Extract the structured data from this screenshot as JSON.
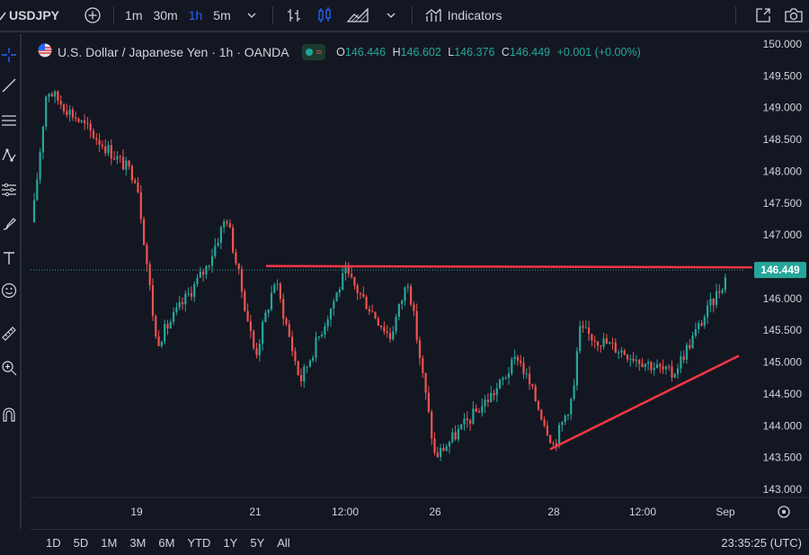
{
  "toolbar": {
    "symbol": "USDJPY",
    "intervals": [
      "1m",
      "30m",
      "1h",
      "5m"
    ],
    "active_interval": "1h",
    "indicators_label": "Indicators"
  },
  "legend": {
    "title": "U.S. Dollar / Japanese Yen · 1h · OANDA",
    "o_label": "O",
    "o_value": "146.446",
    "h_label": "H",
    "h_value": "146.602",
    "l_label": "L",
    "l_value": "146.376",
    "c_label": "C",
    "c_value": "146.449",
    "change": "+0.001 (+0.00%)"
  },
  "price_axis": {
    "ticks": [
      "150.000",
      "149.500",
      "149.000",
      "148.500",
      "148.000",
      "147.500",
      "147.000",
      "146.500",
      "146.000",
      "145.500",
      "145.000",
      "144.500",
      "144.000",
      "143.500",
      "143.000"
    ],
    "current_price": "146.449"
  },
  "time_axis": {
    "labels": [
      "19",
      "21",
      "12:00",
      "26",
      "28",
      "12:00",
      "Sep"
    ]
  },
  "ranges": [
    "1D",
    "5D",
    "1M",
    "3M",
    "6M",
    "YTD",
    "1Y",
    "5Y",
    "All"
  ],
  "clock": "23:35:25 (UTC)",
  "colors": {
    "background": "#131722",
    "up": "#26a69a",
    "down": "#ef5350",
    "trendline": "#f23645",
    "accent": "#2962ff"
  },
  "chart_data": {
    "type": "candlestick",
    "ylim": [
      143.0,
      150.0
    ],
    "trendlines": [
      {
        "from": {
          "x": "21",
          "y": 146.51
        },
        "to": {
          "x": "Sep",
          "y": 146.49
        }
      },
      {
        "from": {
          "x": "28",
          "y": 143.63
        },
        "to": {
          "x": "Sep",
          "y": 145.1
        }
      }
    ],
    "close_path": [
      {
        "x": "start",
        "y": 147.2
      },
      {
        "x": "18",
        "y": 149.3
      },
      {
        "x": "19",
        "y": 147.9
      },
      {
        "x": "19",
        "y": 145.3
      },
      {
        "x": "20",
        "y": 146.5
      },
      {
        "x": "20",
        "y": 147.3
      },
      {
        "x": "21",
        "y": 145.1
      },
      {
        "x": "21",
        "y": 146.3
      },
      {
        "x": "22",
        "y": 144.7
      },
      {
        "x": "12:00",
        "y": 146.4
      },
      {
        "x": "23",
        "y": 145.4
      },
      {
        "x": "24",
        "y": 146.3
      },
      {
        "x": "26",
        "y": 143.5
      },
      {
        "x": "27",
        "y": 144.6
      },
      {
        "x": "27",
        "y": 145.1
      },
      {
        "x": "28",
        "y": 143.7
      },
      {
        "x": "28",
        "y": 144.5
      },
      {
        "x": "12:00",
        "y": 145.5
      },
      {
        "x": "31",
        "y": 144.8
      },
      {
        "x": "Sep",
        "y": 146.449
      }
    ]
  }
}
